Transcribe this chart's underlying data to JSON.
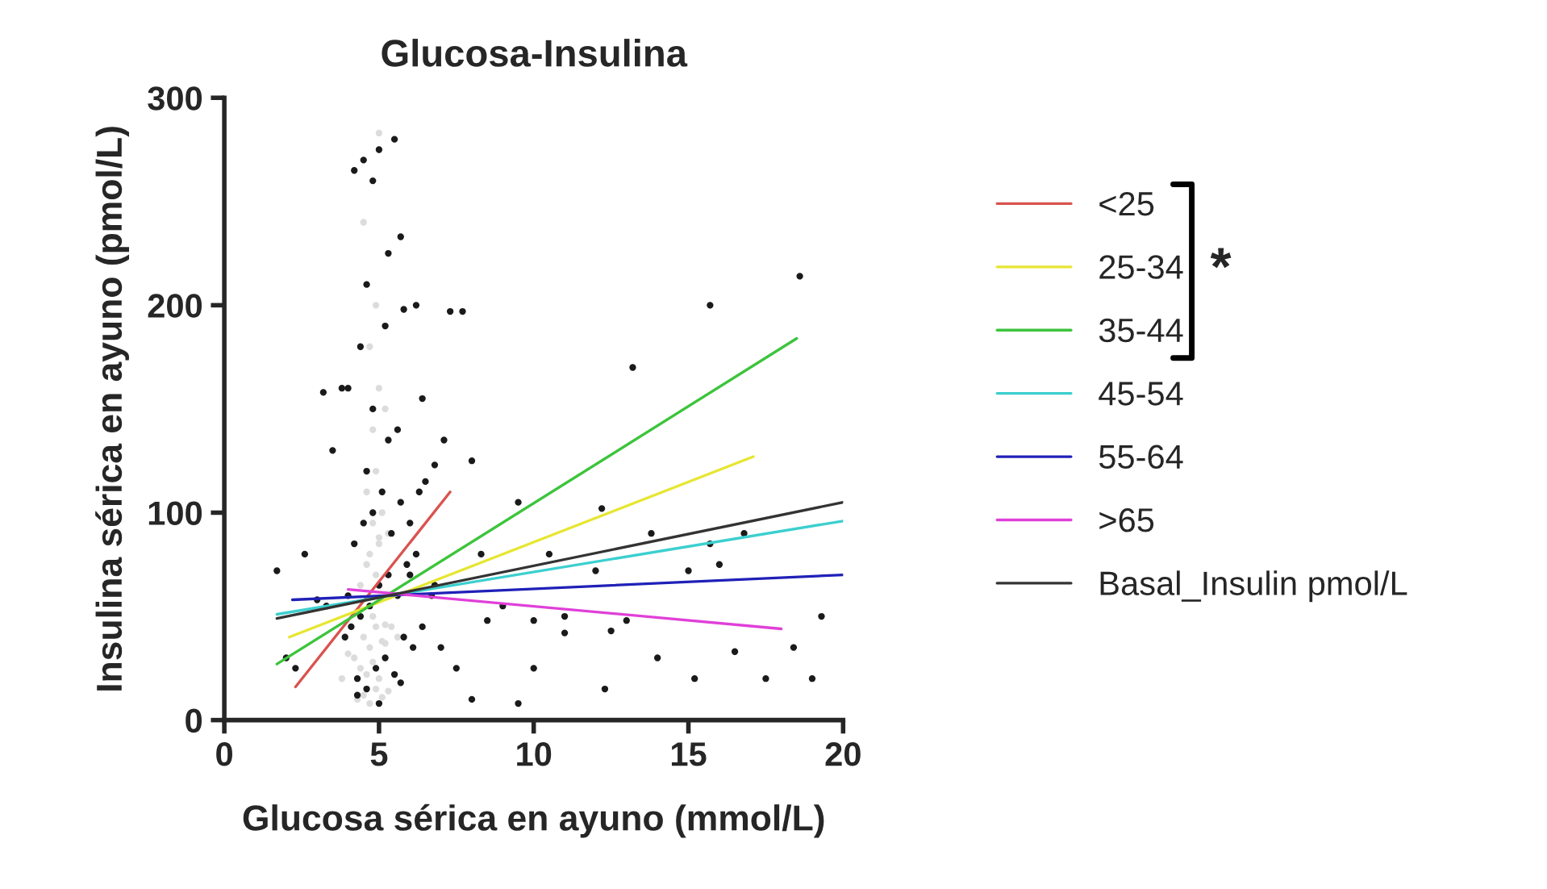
{
  "chart_data": {
    "type": "scatter",
    "title": "Glucosa-Insulina",
    "xlabel": "Glucosa sérica en ayuno (mmol/L)",
    "ylabel": "Insulina sérica en ayuno (pmol/L)",
    "xlim": [
      0,
      20
    ],
    "ylim": [
      0,
      300
    ],
    "xticks": [
      0,
      5,
      10,
      15,
      20
    ],
    "yticks": [
      0,
      100,
      200,
      300
    ],
    "grid": false,
    "legend": "right",
    "annotations": [
      "*"
    ],
    "series": [
      {
        "color": "#dcdcdc",
        "x": [
          4.3,
          4.5,
          4.7,
          4.9,
          5.1,
          5.3,
          4.4,
          4.6,
          4.8,
          5.0,
          5.2,
          4.5,
          4.7,
          4.9,
          5.1,
          4.6,
          4.8,
          5.0,
          4.4,
          4.9,
          5.2,
          4.7,
          5.0,
          4.8,
          5.1,
          4.6,
          4.9,
          5.3,
          4.2,
          5.4,
          4.8,
          5.0,
          4.7,
          4.9,
          5.2,
          3.8,
          4.0,
          5.6,
          4.5,
          5.0
        ],
        "values": [
          10,
          12,
          8,
          15,
          11,
          14,
          25,
          22,
          28,
          20,
          37,
          40,
          35,
          45,
          38,
          75,
          50,
          88,
          65,
          70,
          46,
          80,
          85,
          95,
          100,
          110,
          120,
          90,
          30,
          45,
          140,
          160,
          180,
          200,
          150,
          20,
          32,
          40,
          240,
          283
        ]
      },
      {
        "color": "#1a1a1a",
        "x": [
          4.5,
          5.0,
          5.5,
          4.2,
          4.8,
          5.7,
          5.3,
          4.6,
          5.8,
          6.2,
          7.3,
          7.7,
          15.7,
          18.6,
          13.2,
          4.0,
          6.4,
          5.6,
          7.1,
          8.0,
          6.8,
          9.5,
          12.2,
          13.8,
          15.7,
          16.8,
          8.3,
          10.5,
          12.0,
          15.0,
          16.0,
          19.3,
          19.0,
          17.5,
          15.2,
          12.3,
          10.0,
          9.5,
          14.0,
          16.5,
          18.4,
          11.0,
          12.5,
          13.0,
          10.0,
          8.5,
          9.0,
          11.0,
          7.0,
          7.5,
          8.0,
          2.6,
          1.7,
          3.0,
          3.3,
          2.0,
          2.3,
          3.5,
          3.8,
          3.2,
          4.3,
          4.6,
          4.9,
          5.2,
          5.5,
          5.8,
          6.1,
          6.4,
          6.7,
          4.1,
          4.4,
          4.7,
          5.0,
          5.3,
          5.6,
          5.9,
          6.2,
          4.2,
          4.5,
          4.8,
          5.1,
          5.4,
          5.7,
          6.0,
          6.5,
          4.0,
          4.6,
          5.3,
          6.0,
          6.8,
          4.3,
          5.0,
          5.7,
          4.4,
          5.2,
          6.3,
          3.9,
          4.8
        ],
        "values": [
          270,
          275,
          280,
          265,
          260,
          233,
          225,
          210,
          198,
          200,
          197,
          197,
          200,
          214,
          170,
          160,
          155,
          140,
          135,
          125,
          123,
          105,
          102,
          90,
          85,
          90,
          80,
          80,
          72,
          72,
          75,
          50,
          20,
          20,
          20,
          15,
          25,
          8,
          30,
          33,
          35,
          50,
          43,
          48,
          48,
          48,
          55,
          42,
          35,
          25,
          10,
          80,
          72,
          58,
          55,
          30,
          25,
          130,
          160,
          158,
          20,
          15,
          25,
          30,
          22,
          40,
          35,
          45,
          60,
          45,
          50,
          55,
          65,
          70,
          60,
          75,
          80,
          85,
          95,
          100,
          110,
          90,
          105,
          70,
          115,
          60,
          120,
          135,
          95,
          65,
          12,
          8,
          18,
          180,
          190,
          110,
          40,
          150
        ]
      },
      {
        "type": "line",
        "name": "<25",
        "color": "#d9534f",
        "x": [
          2.3,
          7.3
        ],
        "values": [
          16,
          110
        ]
      },
      {
        "type": "line",
        "name": "25-34",
        "color": "#e6e632",
        "x": [
          2.1,
          17.1
        ],
        "values": [
          40,
          127
        ]
      },
      {
        "type": "line",
        "name": "35-44",
        "color": "#3cc43c",
        "x": [
          1.7,
          18.5
        ],
        "values": [
          27,
          184
        ]
      },
      {
        "type": "line",
        "name": "45-54",
        "color": "#3ccfcf",
        "x": [
          1.7,
          20
        ],
        "values": [
          51,
          96
        ]
      },
      {
        "type": "line",
        "name": "55-64",
        "color": "#2020b8",
        "x": [
          2.2,
          20
        ],
        "values": [
          58,
          70
        ]
      },
      {
        "type": "line",
        "name": ">65",
        "color": "#e040d8",
        "x": [
          4.0,
          18
        ],
        "values": [
          63,
          44
        ]
      },
      {
        "type": "line",
        "name": "Basal_Insulin pmol/L",
        "color": "#333333",
        "x": [
          1.7,
          20
        ],
        "values": [
          49,
          105
        ]
      }
    ]
  }
}
